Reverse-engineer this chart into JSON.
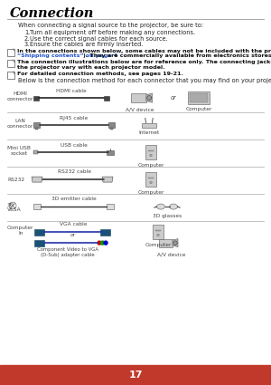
{
  "title": "Connection",
  "page_number": "17",
  "page_bg": "#ffffff",
  "footer_bg": "#c0392b",
  "footer_text_color": "#ffffff",
  "title_color": "#000000",
  "body_text_color": "#222222",
  "note_text_color": "#111111",
  "link_color": "#2255cc",
  "title_fontsize": 10.5,
  "body_fontsize": 4.8,
  "note_fontsize": 4.6,
  "small_fontsize": 4.2,
  "intro_text": "When connecting a signal source to the projector, be sure to:",
  "list_items": [
    "Turn all equipment off before making any connections.",
    "Use the correct signal cables for each source.",
    "Ensure the cables are firmly inserted."
  ],
  "note1_before": "In the connections shown below, some cables may not be included with the projector (see ",
  "note1_link": "“Shipping contents” on page 4",
  "note1_after": "). They are commercially available from electronics stores.",
  "note2_line1": "The connection illustrations below are for reference only. The connecting jacks available on",
  "note2_line2": "the projector vary with each projector model.",
  "note3": "For detailed connection methods, see pages 19-21.",
  "below_text": "Below is the connection method for each connector that you may find on your projector.",
  "cable_color_normal": "#333333",
  "cable_color_blue": "#1a5276",
  "conn_label_color": "#444444",
  "divider_color": "#aaaaaa"
}
